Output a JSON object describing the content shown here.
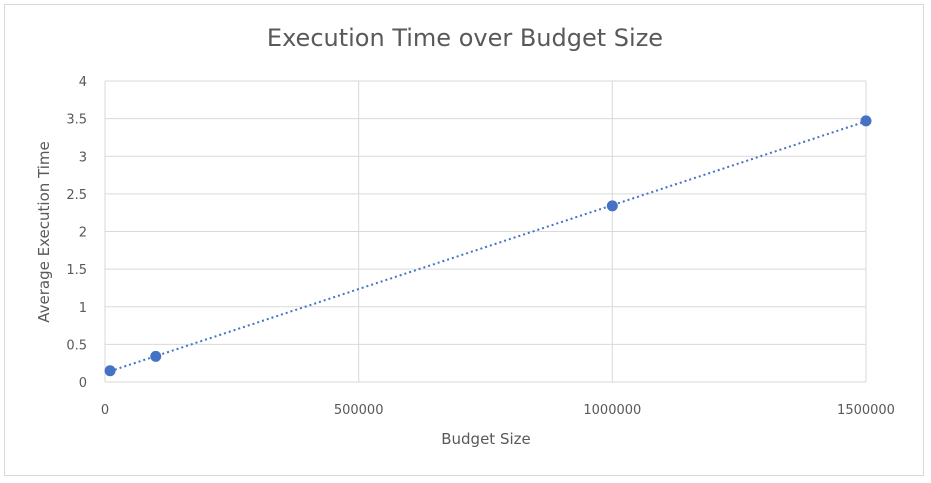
{
  "chart_data": {
    "type": "scatter",
    "title": "Execution Time over Budget Size",
    "xlabel": "Budget Size",
    "ylabel": "Average Execution Time",
    "xlim": [
      0,
      1500000
    ],
    "ylim": [
      0,
      4
    ],
    "x_ticks": [
      0,
      500000,
      1000000,
      1500000
    ],
    "x_tick_labels": [
      "0",
      "500000",
      "1000000",
      "1500000"
    ],
    "y_ticks": [
      0,
      0.5,
      1,
      1.5,
      2,
      2.5,
      3,
      3.5,
      4
    ],
    "y_tick_labels": [
      "0",
      "0.5",
      "1",
      "1.5",
      "2",
      "2.5",
      "3",
      "3.5",
      "4"
    ],
    "grid": true,
    "legend": "none",
    "series": [
      {
        "color": "#4472C4",
        "x": [
          10000,
          100000,
          1000000,
          1500000
        ],
        "y": [
          0.15,
          0.34,
          2.34,
          3.47
        ],
        "trendline": {
          "type": "linear",
          "style": "dotted"
        }
      }
    ]
  }
}
